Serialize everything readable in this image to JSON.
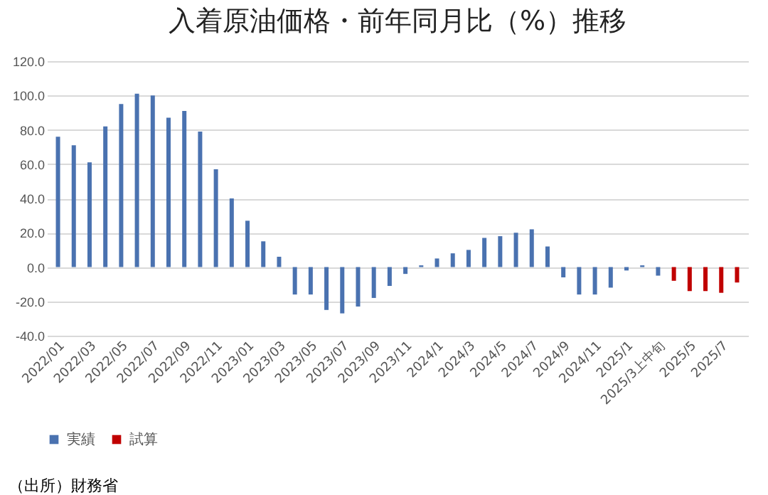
{
  "chart_data": {
    "type": "bar",
    "title": "入着原油価格・前年同月比（%）推移",
    "categories": [
      "2022/01",
      null,
      "2022/03",
      null,
      "2022/05",
      null,
      "2022/07",
      null,
      "2022/09",
      null,
      "2022/11",
      null,
      "2023/01",
      null,
      "2023/03",
      null,
      "2023/05",
      null,
      "2023/07",
      null,
      "2023/09",
      null,
      "2023/11",
      null,
      "2024/1",
      null,
      "2024/3",
      null,
      "2024/5",
      null,
      "2024/7",
      null,
      "2024/9",
      null,
      "2024/11",
      null,
      "2025/1",
      null,
      "2025/3上中旬",
      null,
      "2025/5",
      null,
      "2025/7",
      null
    ],
    "series": [
      {
        "name": "実績",
        "color": "#4a72b0",
        "values": [
          76,
          71,
          61,
          82,
          95,
          101,
          100,
          87,
          91,
          79,
          57,
          40,
          27,
          15,
          6,
          -16,
          -16,
          -25,
          -27,
          -23,
          -18,
          -11,
          -4,
          1,
          5,
          8,
          10,
          17,
          18,
          20,
          22,
          12,
          -6,
          -16,
          -16,
          -12,
          -2,
          1,
          -5,
          null,
          null,
          null,
          null,
          null
        ]
      },
      {
        "name": "試算",
        "color": "#c00000",
        "values": [
          null,
          null,
          null,
          null,
          null,
          null,
          null,
          null,
          null,
          null,
          null,
          null,
          null,
          null,
          null,
          null,
          null,
          null,
          null,
          null,
          null,
          null,
          null,
          null,
          null,
          null,
          null,
          null,
          null,
          null,
          null,
          null,
          null,
          null,
          null,
          null,
          null,
          null,
          null,
          -8,
          -14,
          -14,
          -15,
          -9
        ]
      }
    ],
    "ylim": [
      -40,
      120
    ],
    "yticks": [
      {
        "value": -40,
        "label": "-40.0"
      },
      {
        "value": -20,
        "label": "-20.0"
      },
      {
        "value": 0,
        "label": "0.0"
      },
      {
        "value": 20,
        "label": "20.0"
      },
      {
        "value": 40,
        "label": "40.0"
      },
      {
        "value": 60,
        "label": "60.0"
      },
      {
        "value": 80,
        "label": "80.0"
      },
      {
        "value": 100,
        "label": "100.0"
      },
      {
        "value": 120,
        "label": "120.0"
      }
    ],
    "grid": "y",
    "legend": "bottom",
    "annotations": [
      "（出所）財務省"
    ]
  }
}
